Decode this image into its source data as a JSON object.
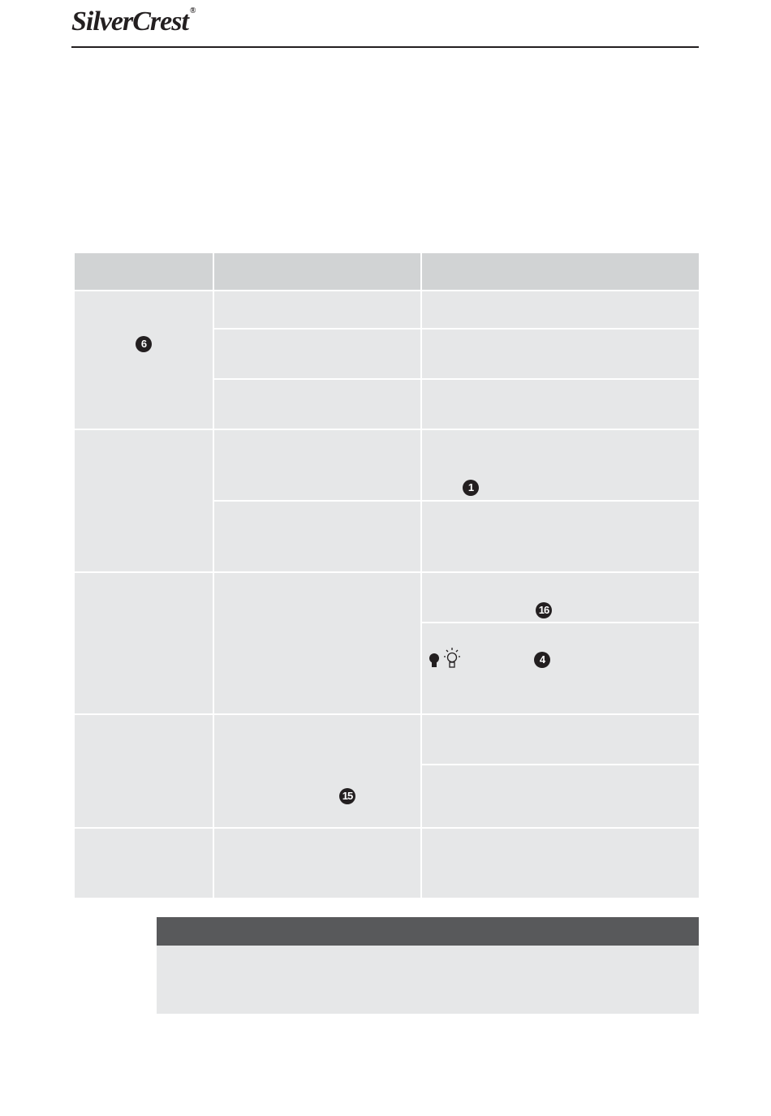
{
  "header": {
    "logo_text": "SilverCrest",
    "logo_mark": "®"
  },
  "table": {
    "badges": {
      "group1_col1": "6",
      "group2_col3": "1",
      "group3_col3a": "16",
      "group3_col3b": "4",
      "group4_col2": "15"
    },
    "icons": [
      "bulb-off-icon",
      "bulb-on-icon"
    ]
  },
  "colors": {
    "header_cell": "#d1d3d4",
    "body_cell": "#e6e7e8",
    "note_header": "#58595b",
    "text": "#231f20"
  }
}
